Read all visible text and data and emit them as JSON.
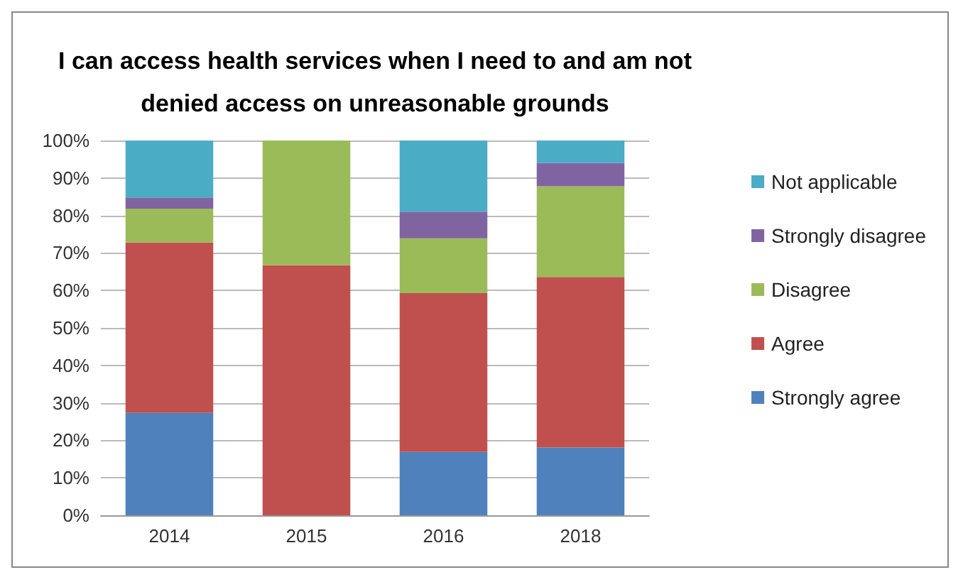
{
  "chart_data": {
    "type": "bar",
    "stacked": true,
    "title": "I can access health services when I need to and am not\ndenied access on unreasonable grounds",
    "categories": [
      "2014",
      "2015",
      "2016",
      "2018"
    ],
    "series": [
      {
        "name": "Strongly agree",
        "color": "#4f81bd",
        "values": [
          27.3,
          0,
          16.9,
          18.1
        ]
      },
      {
        "name": "Agree",
        "color": "#c0504d",
        "values": [
          45.5,
          66.7,
          42.4,
          45.5
        ]
      },
      {
        "name": "Disagree",
        "color": "#9bbb59",
        "values": [
          9.0,
          33.3,
          14.6,
          24.2
        ]
      },
      {
        "name": "Strongly disagree",
        "color": "#8064a2",
        "values": [
          3.0,
          0,
          7.1,
          6.2
        ]
      },
      {
        "name": "Not applicable",
        "color": "#4bacc6",
        "values": [
          15.2,
          0,
          19.0,
          6.0
        ]
      }
    ],
    "ylim": [
      0,
      100
    ],
    "yticks": [
      {
        "value": 0,
        "label": "0%"
      },
      {
        "value": 10,
        "label": "10%"
      },
      {
        "value": 20,
        "label": "20%"
      },
      {
        "value": 30,
        "label": "30%"
      },
      {
        "value": 40,
        "label": "40%"
      },
      {
        "value": 50,
        "label": "50%"
      },
      {
        "value": 60,
        "label": "60%"
      },
      {
        "value": 70,
        "label": "70%"
      },
      {
        "value": 80,
        "label": "80%"
      },
      {
        "value": 90,
        "label": "90%"
      },
      {
        "value": 100,
        "label": "100%"
      }
    ],
    "grid": "y",
    "legend": "right"
  }
}
